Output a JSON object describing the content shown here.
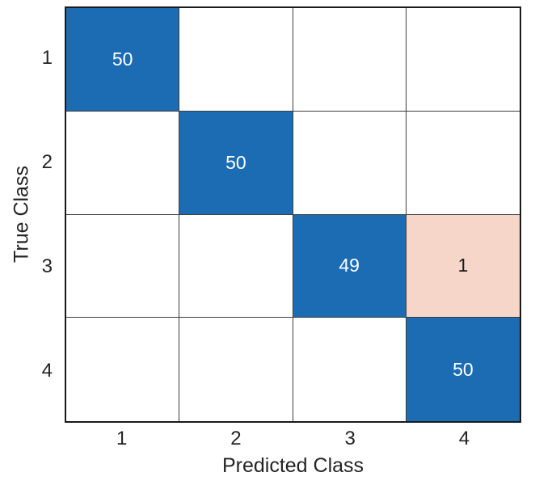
{
  "chart_data": {
    "type": "heatmap",
    "subtype": "confusion-matrix",
    "title": "",
    "xlabel": "Predicted Class",
    "ylabel": "True Class",
    "x_categories": [
      "1",
      "2",
      "3",
      "4"
    ],
    "y_categories": [
      "1",
      "2",
      "3",
      "4"
    ],
    "matrix": [
      [
        50,
        0,
        0,
        0
      ],
      [
        0,
        50,
        0,
        0
      ],
      [
        0,
        0,
        49,
        1
      ],
      [
        0,
        0,
        0,
        50
      ]
    ],
    "zero_cells_blank": true,
    "grid": true,
    "colors": {
      "diagonal_fill": "#1C6CB4",
      "off_diagonal_fill": "#F5D6C8",
      "empty_fill": "#FFFFFF",
      "diagonal_text": "#FFFFFF",
      "off_diagonal_text": "#1A1A1A",
      "grid_line": "#3D3D3D",
      "plot_border": "#1A1A1A",
      "axis_text": "#242424"
    }
  }
}
